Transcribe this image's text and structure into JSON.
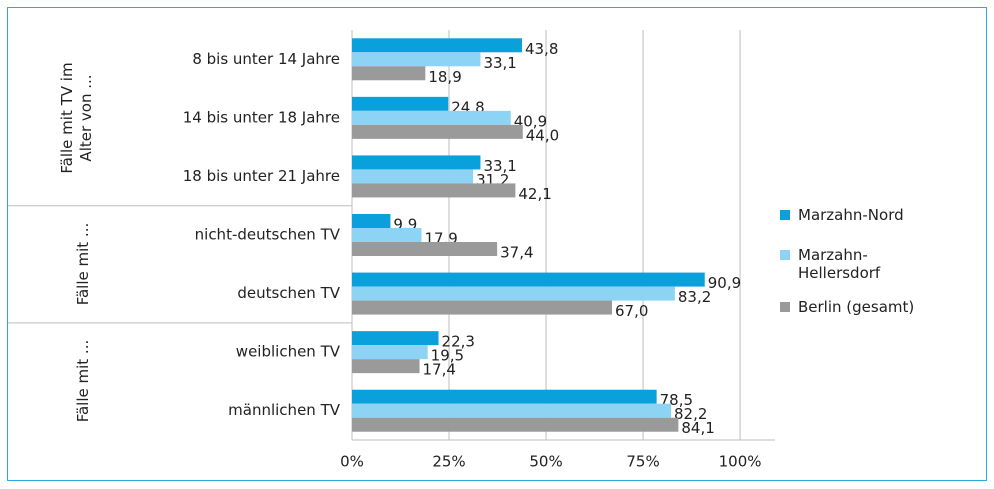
{
  "chart_data": {
    "type": "bar",
    "orientation": "horizontal",
    "groups": [
      {
        "label": "Fälle mit TV im Alter von ...",
        "categories": [
          "8 bis unter 14 Jahre",
          "14 bis unter 18 Jahre",
          "18 bis unter 21 Jahre"
        ]
      },
      {
        "label": "Fälle mit ...",
        "categories": [
          "nicht-deutschen TV",
          "deutschen TV"
        ]
      },
      {
        "label": "Fälle mit ...",
        "categories": [
          "weiblichen TV",
          "männlichen TV"
        ]
      }
    ],
    "series": [
      {
        "name": "Marzahn-Nord",
        "color": "#0aa0dc",
        "values": [
          43.8,
          24.8,
          33.1,
          9.9,
          90.9,
          22.3,
          78.5
        ],
        "value_labels": [
          "43,8",
          "24,8",
          "33,1",
          "9,9",
          "90,9",
          "22,3",
          "78,5"
        ]
      },
      {
        "name": "Marzahn-Hellersdorf",
        "color": "#8dd4f4",
        "values": [
          33.1,
          40.9,
          31.2,
          17.9,
          83.2,
          19.5,
          82.2
        ],
        "value_labels": [
          "33,1",
          "40,9",
          "31,2",
          "17,9",
          "83,2",
          "19,5",
          "82,2"
        ]
      },
      {
        "name": "Berlin (gesamt)",
        "color": "#9a9a9a",
        "values": [
          18.9,
          44.0,
          42.1,
          37.4,
          67.0,
          17.4,
          84.1
        ],
        "value_labels": [
          "18,9",
          "44,0",
          "42,1",
          "37,4",
          "67,0",
          "17,4",
          "84,1"
        ]
      }
    ],
    "xlim": [
      0,
      109
    ],
    "xticks": [
      {
        "value": 0,
        "label": "0%"
      },
      {
        "value": 25,
        "label": "25%"
      },
      {
        "value": 50,
        "label": "50%"
      },
      {
        "value": 75,
        "label": "75%"
      },
      {
        "value": 100,
        "label": "100%"
      }
    ],
    "grid": true,
    "legend": "right"
  }
}
